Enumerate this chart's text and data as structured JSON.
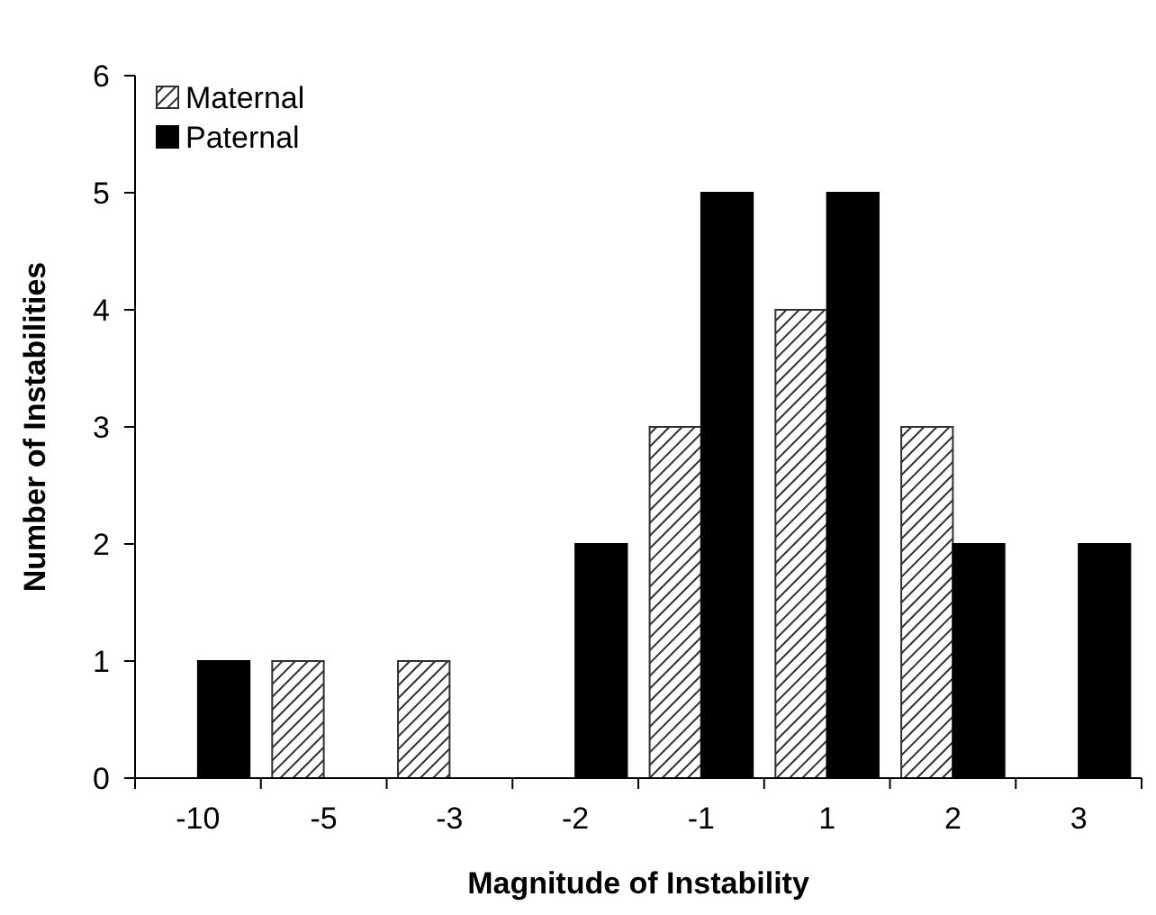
{
  "chart_data": {
    "type": "bar",
    "xlabel": "Magnitude of Instability",
    "ylabel": "Number of Instabilities",
    "categories": [
      "-10",
      "-5",
      "-3",
      "-2",
      "-1",
      "1",
      "2",
      "3"
    ],
    "series": [
      {
        "name": "Maternal",
        "color": "#303030",
        "values": [
          0,
          1,
          1,
          0,
          3,
          4,
          3,
          0
        ]
      },
      {
        "name": "Paternal",
        "color": "#000000",
        "values": [
          1,
          0,
          0,
          2,
          5,
          5,
          2,
          2
        ]
      }
    ],
    "ylim": [
      0,
      6
    ],
    "yticks": [
      0,
      1,
      2,
      3,
      4,
      5,
      6
    ],
    "grid": false,
    "legend": "top left"
  }
}
